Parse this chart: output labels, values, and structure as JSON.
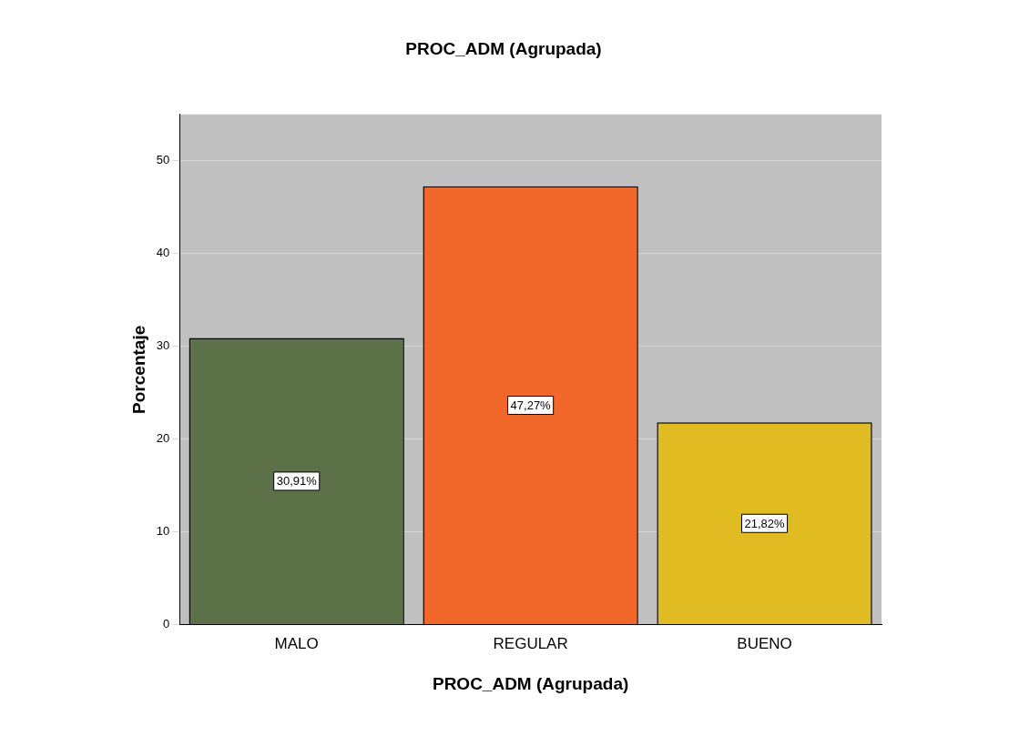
{
  "chart_data": {
    "type": "bar",
    "title": "PROC_ADM (Agrupada)",
    "xlabel": "PROC_ADM (Agrupada)",
    "ylabel": "Porcentaje",
    "categories": [
      "MALO",
      "REGULAR",
      "BUENO"
    ],
    "values": [
      30.91,
      47.27,
      21.82
    ],
    "colors": [
      "#5c7148",
      "#f2672a",
      "#e0bb22"
    ],
    "value_labels": [
      "30,91%",
      "47,27%",
      "21,82%"
    ],
    "ylim": [
      0,
      55
    ],
    "yticks": [
      0,
      10,
      20,
      30,
      40,
      50
    ],
    "grid": "y",
    "legend": false
  }
}
